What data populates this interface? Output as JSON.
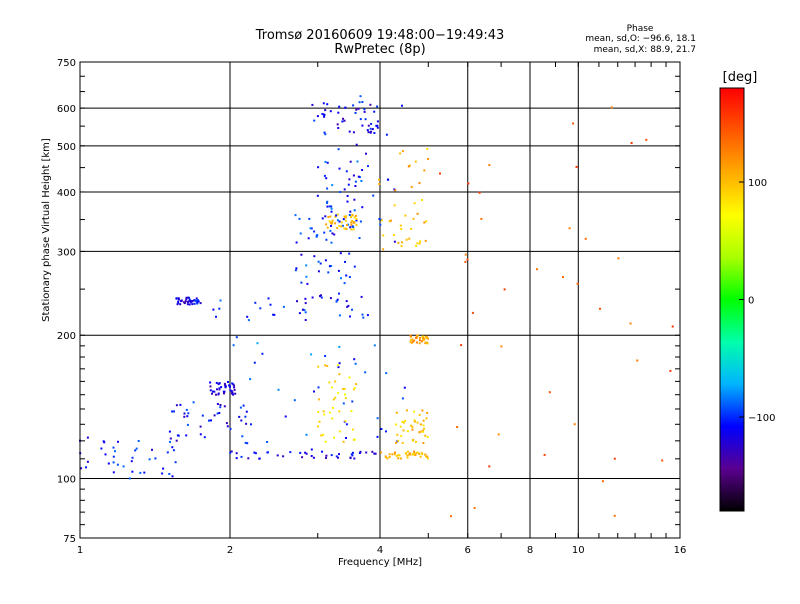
{
  "chart_data": {
    "type": "scatter",
    "title": "Tromsø 20160609 19:48:00−19:49:43",
    "subtitle": "RwPretec (8p)",
    "xlabel": "Frequency [MHz]",
    "ylabel": "Stationary phase Virtual Height [km]",
    "x_scale": "log",
    "y_scale": "log",
    "xlim": [
      1,
      16
    ],
    "ylim": [
      75,
      750
    ],
    "x_ticks": [
      "1",
      "2",
      "4",
      "6",
      "8",
      "10",
      "16"
    ],
    "y_ticks": [
      "75",
      "100",
      "200",
      "300",
      "400",
      "500",
      "600",
      "750"
    ],
    "grid": true,
    "colorbar": {
      "label": "[deg]",
      "range": [
        -180,
        180
      ],
      "ticks": [
        "100",
        "0",
        "−100"
      ],
      "colors": [
        "#000000",
        "#5a0090",
        "#0000ff",
        "#00b4ff",
        "#00ffaa",
        "#00ff00",
        "#aaff00",
        "#ffff00",
        "#ffaa00",
        "#ff5500",
        "#ff0000"
      ]
    },
    "stats": {
      "heading": "Phase",
      "o_mode": "mean, sd,O: −96.6, 18.1",
      "x_mode": "mean, sd,X:  88.9, 21.7"
    },
    "clusters": [
      {
        "name": "",
        "x_range": [
          1.0,
          1.6
        ],
        "y_range": [
          100,
          122
        ],
        "phase": -105
      },
      {
        "name": "",
        "x_range": [
          1.5,
          2.2
        ],
        "y_range": [
          118,
          145
        ],
        "phase": -110
      },
      {
        "name": "",
        "x_range": [
          1.8,
          2.05
        ],
        "y_range": [
          150,
          160
        ],
        "phase": -120
      },
      {
        "name": "",
        "x_range": [
          2.0,
          4.0
        ],
        "y_range": [
          110,
          114
        ],
        "phase": -115
      },
      {
        "name": "",
        "x_range": [
          4.0,
          5.0
        ],
        "y_range": [
          110,
          114
        ],
        "phase": 105
      },
      {
        "name": "",
        "x_range": [
          2.0,
          4.5
        ],
        "y_range": [
          115,
          200
        ],
        "phase": -95
      },
      {
        "name": "",
        "x_range": [
          3.0,
          3.6
        ],
        "y_range": [
          118,
          175
        ],
        "phase": 85
      },
      {
        "name": "",
        "x_range": [
          4.3,
          5.0
        ],
        "y_range": [
          118,
          140
        ],
        "phase": 100
      },
      {
        "name": "",
        "x_range": [
          4.6,
          5.0
        ],
        "y_range": [
          192,
          200
        ],
        "phase": 110
      },
      {
        "name": "",
        "x_range": [
          1.55,
          1.75
        ],
        "y_range": [
          232,
          240
        ],
        "phase": -115
      },
      {
        "name": "",
        "x_range": [
          1.85,
          3.8
        ],
        "y_range": [
          215,
          245
        ],
        "phase": -105
      },
      {
        "name": "",
        "x_range": [
          2.7,
          3.5
        ],
        "y_range": [
          255,
          360
        ],
        "phase": -100
      },
      {
        "name": "",
        "x_range": [
          3.0,
          3.7
        ],
        "y_range": [
          330,
          470
        ],
        "phase": -100
      },
      {
        "name": "",
        "x_range": [
          3.1,
          3.6
        ],
        "y_range": [
          330,
          360
        ],
        "phase": 100
      },
      {
        "name": "",
        "x_range": [
          3.0,
          4.0
        ],
        "y_range": [
          530,
          620
        ],
        "phase": -115
      },
      {
        "name": "",
        "x_range": [
          2.9,
          4.45
        ],
        "y_range": [
          270,
          650
        ],
        "phase": -105
      },
      {
        "name": "",
        "x_range": [
          3.9,
          5.05
        ],
        "y_range": [
          300,
          500
        ],
        "phase": 105
      },
      {
        "name": "",
        "x_range": [
          5.0,
          16.0
        ],
        "y_range": [
          80,
          620
        ],
        "phase": 140
      }
    ]
  }
}
